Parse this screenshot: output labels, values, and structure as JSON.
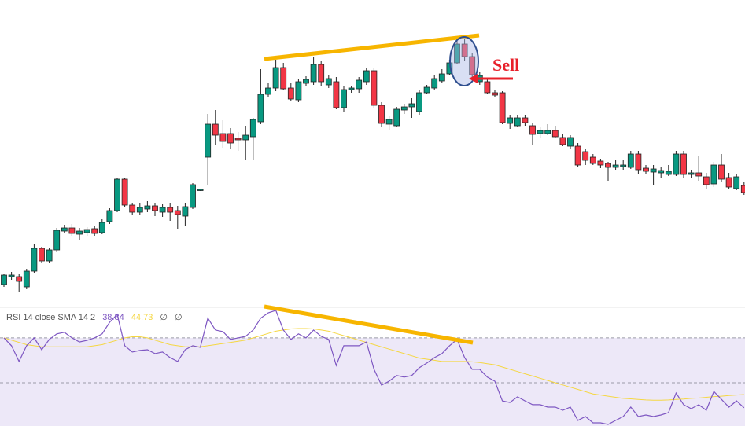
{
  "chart_data": [
    {
      "type": "candlestick",
      "up_color": "#089981",
      "down_color": "#f23645",
      "ylim": [
        0,
        390
      ],
      "annotation": "Sell",
      "open": [
        28,
        38,
        38,
        25,
        45,
        74,
        58,
        72,
        96,
        100,
        92,
        94,
        99,
        94,
        108,
        122,
        162,
        129,
        120,
        124,
        128,
        120,
        126,
        122,
        115,
        126,
        148,
        190,
        232,
        220,
        220,
        214,
        212,
        216,
        235,
        270,
        278,
        304,
        278,
        263,
        284,
        286,
        308,
        282,
        286,
        253,
        276,
        277,
        286,
        300,
        256,
        232,
        230,
        250,
        254,
        248,
        272,
        278,
        287,
        296,
        310,
        334,
        318,
        286,
        286,
        272,
        272,
        233,
        230,
        240,
        230,
        220,
        220,
        224,
        215,
        204,
        204,
        197,
        190,
        185,
        182,
        177,
        178,
        177,
        194,
        176,
        171,
        170,
        168,
        168,
        194,
        168,
        170,
        165,
        156,
        180,
        164,
        150,
        154
      ],
      "high": [
        42,
        44,
        42,
        48,
        80,
        76,
        74,
        100,
        104,
        105,
        100,
        101,
        102,
        111,
        125,
        164,
        163,
        132,
        132,
        134,
        132,
        130,
        132,
        128,
        132,
        157,
        150,
        245,
        250,
        237,
        227,
        222,
        230,
        240,
        302,
        284,
        314,
        310,
        284,
        290,
        293,
        317,
        312,
        294,
        292,
        280,
        280,
        292,
        304,
        304,
        260,
        242,
        254,
        258,
        265,
        276,
        282,
        294,
        302,
        314,
        338,
        340,
        322,
        298,
        290,
        275,
        274,
        244,
        244,
        244,
        234,
        228,
        232,
        230,
        220,
        218,
        208,
        200,
        194,
        188,
        184,
        186,
        186,
        198,
        198,
        180,
        180,
        178,
        180,
        198,
        198,
        174,
        192,
        170,
        184,
        194,
        170,
        168,
        158
      ],
      "low": [
        25,
        34,
        18,
        22,
        43,
        56,
        56,
        70,
        94,
        90,
        85,
        90,
        90,
        92,
        105,
        120,
        126,
        117,
        116,
        120,
        115,
        114,
        109,
        99,
        103,
        124,
        147,
        155,
        205,
        202,
        200,
        198,
        187,
        186,
        232,
        266,
        274,
        275,
        262,
        260,
        280,
        282,
        280,
        278,
        251,
        248,
        272,
        272,
        282,
        252,
        229,
        224,
        228,
        245,
        240,
        244,
        270,
        276,
        284,
        294,
        308,
        312,
        290,
        282,
        270,
        266,
        232,
        226,
        228,
        230,
        206,
        214,
        218,
        214,
        204,
        200,
        177,
        180,
        180,
        176,
        160,
        174,
        174,
        175,
        168,
        168,
        154,
        164,
        166,
        166,
        164,
        164,
        160,
        150,
        152,
        158,
        150,
        148,
        142
      ],
      "close": [
        40,
        40,
        32,
        45,
        74,
        58,
        72,
        97,
        100,
        93,
        96,
        98,
        93,
        107,
        122,
        162,
        129,
        120,
        126,
        128,
        122,
        126,
        120,
        117,
        127,
        155,
        149,
        232,
        218,
        210,
        208,
        212,
        218,
        238,
        270,
        278,
        304,
        277,
        264,
        286,
        289,
        308,
        286,
        290,
        253,
        276,
        278,
        288,
        300,
        256,
        233,
        238,
        251,
        254,
        258,
        272,
        279,
        290,
        296,
        310,
        334,
        318,
        295,
        294,
        272,
        269,
        234,
        240,
        240,
        234,
        219,
        224,
        224,
        216,
        206,
        215,
        180,
        186,
        182,
        180,
        177,
        180,
        180,
        194,
        174,
        172,
        175,
        173,
        172,
        194,
        168,
        170,
        166,
        155,
        180,
        162,
        152,
        165,
        145
      ]
    },
    {
      "type": "line",
      "title": "RSI 14 close SMA 14 2",
      "legend_values": [
        "∅",
        "∅"
      ],
      "ylim": [
        30.7,
        83.3
      ],
      "levels": [
        70,
        50
      ],
      "band_color": "#ede8f8",
      "series": [
        {
          "color": "#7e57c2",
          "values": [
            70,
            66.5,
            59.5,
            66.5,
            70,
            64.7,
            69.3,
            71.8,
            72.5,
            70,
            68.2,
            68.9,
            70,
            71.8,
            77,
            80.5,
            66.5,
            63.7,
            64.4,
            64.7,
            63,
            63.7,
            61.2,
            59.5,
            64.7,
            66.5,
            65.8,
            78.8,
            73.5,
            72.8,
            69.3,
            70,
            70.7,
            73.5,
            78.8,
            81.2,
            82.3,
            73.5,
            69.3,
            71.8,
            70,
            73.5,
            70.7,
            69.3,
            57.7,
            66.5,
            66.5,
            66.5,
            68.2,
            56,
            48.9,
            50.7,
            53.2,
            52.5,
            53.2,
            56.7,
            58.8,
            61.2,
            63,
            66.5,
            69.3,
            61.2,
            56,
            56,
            52.5,
            50.7,
            41.9,
            41.2,
            43.7,
            41.9,
            40.2,
            40.2,
            39.1,
            39.1,
            37.7,
            39.1,
            33.2,
            34.9,
            32.1,
            32.1,
            31.4,
            33.2,
            34.9,
            39.1,
            34.9,
            35.6,
            34.9,
            35.6,
            36.7,
            45.4,
            40.2,
            38.4,
            40.2,
            37.7,
            46.1,
            42.6,
            39.1,
            41.9,
            38.84
          ]
        },
        {
          "color": "#f5d742",
          "values": [
            70,
            69,
            68,
            67,
            66.5,
            66,
            66,
            66,
            66,
            66,
            66,
            66,
            66.5,
            67,
            68,
            69,
            70,
            70.5,
            70.5,
            70,
            69,
            68,
            67,
            66.5,
            66,
            66,
            66,
            66.5,
            67,
            67.5,
            68,
            68.5,
            69,
            70,
            71,
            72,
            73,
            73.5,
            74,
            74.2,
            74.2,
            74,
            73.5,
            73,
            72,
            71,
            70,
            69,
            68,
            67,
            66,
            65,
            64,
            63,
            62,
            61,
            60.5,
            60,
            59.5,
            59.5,
            59.5,
            59.5,
            59.3,
            59,
            58.5,
            58,
            57,
            56,
            55,
            54,
            53,
            52,
            51,
            50,
            49,
            48,
            47,
            46,
            45,
            44.5,
            44,
            43.5,
            43,
            42.8,
            42.5,
            42.3,
            42.2,
            42.2,
            42.3,
            42.5,
            42.7,
            43,
            43.2,
            43.5,
            43.8,
            44,
            44.3,
            44.5,
            44.73
          ]
        }
      ]
    }
  ]
}
